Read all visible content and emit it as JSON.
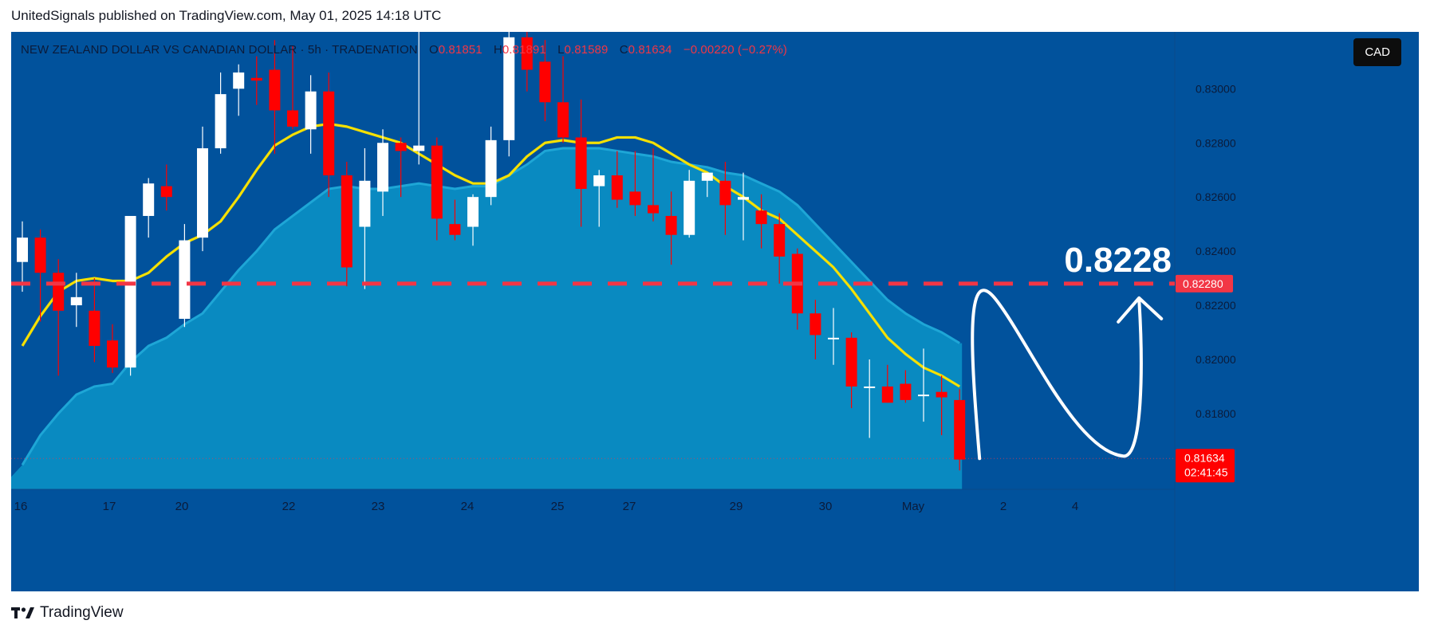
{
  "header": {
    "published": "UnitedSignals published on TradingView.com, May 01, 2025 14:18 UTC"
  },
  "symbol": {
    "name": "NEW ZEALAND DOLLAR VS CANADIAN DOLLAR · 5h · TRADENATION",
    "o_label": "O",
    "o_value": "0.81851",
    "h_label": "H",
    "h_value": "0.81891",
    "l_label": "L",
    "l_value": "0.81589",
    "c_label": "C",
    "c_value": "0.81634",
    "change": "−0.00220 (−0.27%)"
  },
  "currency_badge": "CAD",
  "footer": {
    "brand": "TradingView"
  },
  "colors": {
    "background": "#01529c",
    "bull": "#ffffff",
    "bear": "#ff0000",
    "ma": "#f5e000",
    "area": "#0a8fc4",
    "target_line": "#f23645"
  },
  "chart_data": {
    "type": "candlestick",
    "ylim": [
      0.8152,
      0.8321
    ],
    "y_ticks": [
      0.818,
      0.82,
      0.822,
      0.824,
      0.826,
      0.828,
      0.83
    ],
    "y_tick_labels": [
      "0.81800",
      "0.82000",
      "0.82200",
      "0.82400",
      "0.82600",
      "0.82800",
      "0.83000"
    ],
    "x_tick_labels": [
      "16",
      "17",
      "20",
      "22",
      "23",
      "24",
      "25",
      "27",
      "29",
      "30",
      "May",
      "2",
      "4"
    ],
    "candles": [
      {
        "o": 0.8236,
        "h": 0.8251,
        "l": 0.8225,
        "c": 0.8245
      },
      {
        "o": 0.8245,
        "h": 0.8248,
        "l": 0.8214,
        "c": 0.8232
      },
      {
        "o": 0.8232,
        "h": 0.8237,
        "l": 0.8194,
        "c": 0.8218
      },
      {
        "o": 0.822,
        "h": 0.8232,
        "l": 0.8212,
        "c": 0.8223
      },
      {
        "o": 0.8218,
        "h": 0.823,
        "l": 0.8199,
        "c": 0.8205
      },
      {
        "o": 0.8207,
        "h": 0.8213,
        "l": 0.8195,
        "c": 0.8197
      },
      {
        "o": 0.8197,
        "h": 0.8253,
        "l": 0.8194,
        "c": 0.8253
      },
      {
        "o": 0.8253,
        "h": 0.8267,
        "l": 0.8245,
        "c": 0.8265
      },
      {
        "o": 0.8264,
        "h": 0.8272,
        "l": 0.8255,
        "c": 0.826
      },
      {
        "o": 0.8215,
        "h": 0.825,
        "l": 0.8212,
        "c": 0.8244
      },
      {
        "o": 0.8245,
        "h": 0.8286,
        "l": 0.824,
        "c": 0.8278
      },
      {
        "o": 0.8278,
        "h": 0.8306,
        "l": 0.8276,
        "c": 0.8298
      },
      {
        "o": 0.83,
        "h": 0.8309,
        "l": 0.829,
        "c": 0.8306
      },
      {
        "o": 0.8304,
        "h": 0.8312,
        "l": 0.8294,
        "c": 0.8303
      },
      {
        "o": 0.8307,
        "h": 0.8318,
        "l": 0.8276,
        "c": 0.8292
      },
      {
        "o": 0.8292,
        "h": 0.8316,
        "l": 0.8285,
        "c": 0.8286
      },
      {
        "o": 0.8285,
        "h": 0.8305,
        "l": 0.8276,
        "c": 0.8299
      },
      {
        "o": 0.8299,
        "h": 0.8306,
        "l": 0.826,
        "c": 0.8268
      },
      {
        "o": 0.8268,
        "h": 0.8273,
        "l": 0.8227,
        "c": 0.8234
      },
      {
        "o": 0.8249,
        "h": 0.8278,
        "l": 0.8226,
        "c": 0.8266
      },
      {
        "o": 0.8262,
        "h": 0.8285,
        "l": 0.8253,
        "c": 0.828
      },
      {
        "o": 0.828,
        "h": 0.8282,
        "l": 0.826,
        "c": 0.8277
      },
      {
        "o": 0.8277,
        "h": 0.8325,
        "l": 0.8272,
        "c": 0.8279
      },
      {
        "o": 0.8279,
        "h": 0.8282,
        "l": 0.8244,
        "c": 0.8252
      },
      {
        "o": 0.825,
        "h": 0.8259,
        "l": 0.8244,
        "c": 0.8246
      },
      {
        "o": 0.8249,
        "h": 0.8261,
        "l": 0.8242,
        "c": 0.826
      },
      {
        "o": 0.826,
        "h": 0.8286,
        "l": 0.8257,
        "c": 0.8281
      },
      {
        "o": 0.8281,
        "h": 0.8321,
        "l": 0.8275,
        "c": 0.8319
      },
      {
        "o": 0.8319,
        "h": 0.8324,
        "l": 0.8299,
        "c": 0.8307
      },
      {
        "o": 0.831,
        "h": 0.8318,
        "l": 0.8288,
        "c": 0.8295
      },
      {
        "o": 0.8295,
        "h": 0.8312,
        "l": 0.828,
        "c": 0.8282
      },
      {
        "o": 0.8282,
        "h": 0.8296,
        "l": 0.8249,
        "c": 0.8263
      },
      {
        "o": 0.8264,
        "h": 0.827,
        "l": 0.8249,
        "c": 0.8268
      },
      {
        "o": 0.8268,
        "h": 0.8277,
        "l": 0.8256,
        "c": 0.8259
      },
      {
        "o": 0.8262,
        "h": 0.8277,
        "l": 0.8253,
        "c": 0.8257
      },
      {
        "o": 0.8257,
        "h": 0.8278,
        "l": 0.8251,
        "c": 0.8254
      },
      {
        "o": 0.8253,
        "h": 0.8262,
        "l": 0.8235,
        "c": 0.8246
      },
      {
        "o": 0.8246,
        "h": 0.827,
        "l": 0.8245,
        "c": 0.8266
      },
      {
        "o": 0.8266,
        "h": 0.8269,
        "l": 0.826,
        "c": 0.8269
      },
      {
        "o": 0.8266,
        "h": 0.8273,
        "l": 0.8246,
        "c": 0.8257
      },
      {
        "o": 0.8259,
        "h": 0.8269,
        "l": 0.8244,
        "c": 0.826
      },
      {
        "o": 0.8255,
        "h": 0.8261,
        "l": 0.8241,
        "c": 0.825
      },
      {
        "o": 0.825,
        "h": 0.8254,
        "l": 0.8228,
        "c": 0.8238
      },
      {
        "o": 0.8239,
        "h": 0.8241,
        "l": 0.8211,
        "c": 0.8217
      },
      {
        "o": 0.8217,
        "h": 0.8222,
        "l": 0.82,
        "c": 0.8209
      },
      {
        "o": 0.8208,
        "h": 0.8219,
        "l": 0.8198,
        "c": 0.8208
      },
      {
        "o": 0.8208,
        "h": 0.821,
        "l": 0.8182,
        "c": 0.819
      },
      {
        "o": 0.819,
        "h": 0.82,
        "l": 0.8171,
        "c": 0.819
      },
      {
        "o": 0.819,
        "h": 0.8198,
        "l": 0.8184,
        "c": 0.8184
      },
      {
        "o": 0.8191,
        "h": 0.8196,
        "l": 0.8184,
        "c": 0.8185
      },
      {
        "o": 0.8187,
        "h": 0.8204,
        "l": 0.8177,
        "c": 0.8187
      },
      {
        "o": 0.8188,
        "h": 0.8194,
        "l": 0.8172,
        "c": 0.8186
      },
      {
        "o": 0.8185,
        "h": 0.8189,
        "l": 0.8159,
        "c": 0.8163
      }
    ],
    "ma": [
      0.8205,
      0.8216,
      0.8225,
      0.8229,
      0.823,
      0.8229,
      0.8229,
      0.8232,
      0.8238,
      0.8243,
      0.8246,
      0.8251,
      0.826,
      0.827,
      0.8279,
      0.8283,
      0.8286,
      0.8287,
      0.8286,
      0.8284,
      0.8282,
      0.828,
      0.8276,
      0.8272,
      0.8268,
      0.8265,
      0.8265,
      0.8268,
      0.8275,
      0.828,
      0.8281,
      0.828,
      0.828,
      0.8282,
      0.8282,
      0.828,
      0.8276,
      0.8272,
      0.8269,
      0.8264,
      0.826,
      0.8255,
      0.8252,
      0.8246,
      0.824,
      0.8234,
      0.8226,
      0.8217,
      0.8208,
      0.8202,
      0.8197,
      0.8194,
      0.819
    ],
    "area_top": [
      0.8161,
      0.8172,
      0.818,
      0.8187,
      0.819,
      0.8191,
      0.8199,
      0.8205,
      0.8208,
      0.8213,
      0.8217,
      0.8225,
      0.8233,
      0.824,
      0.8248,
      0.8253,
      0.8258,
      0.8263,
      0.8264,
      0.8263,
      0.8263,
      0.8264,
      0.8265,
      0.8264,
      0.8263,
      0.8264,
      0.8264,
      0.8268,
      0.8272,
      0.8277,
      0.8278,
      0.8278,
      0.8278,
      0.8277,
      0.8276,
      0.8275,
      0.8273,
      0.8272,
      0.8271,
      0.8269,
      0.8268,
      0.8265,
      0.8262,
      0.8257,
      0.825,
      0.8243,
      0.8236,
      0.8229,
      0.8222,
      0.8217,
      0.8213,
      0.821,
      0.8206
    ],
    "target_price": 0.8228,
    "target_label": "0.8228",
    "target_tag": "0.82280",
    "last_price": 0.81634,
    "last_price_tag": "0.81634",
    "countdown": "02:41:45"
  }
}
